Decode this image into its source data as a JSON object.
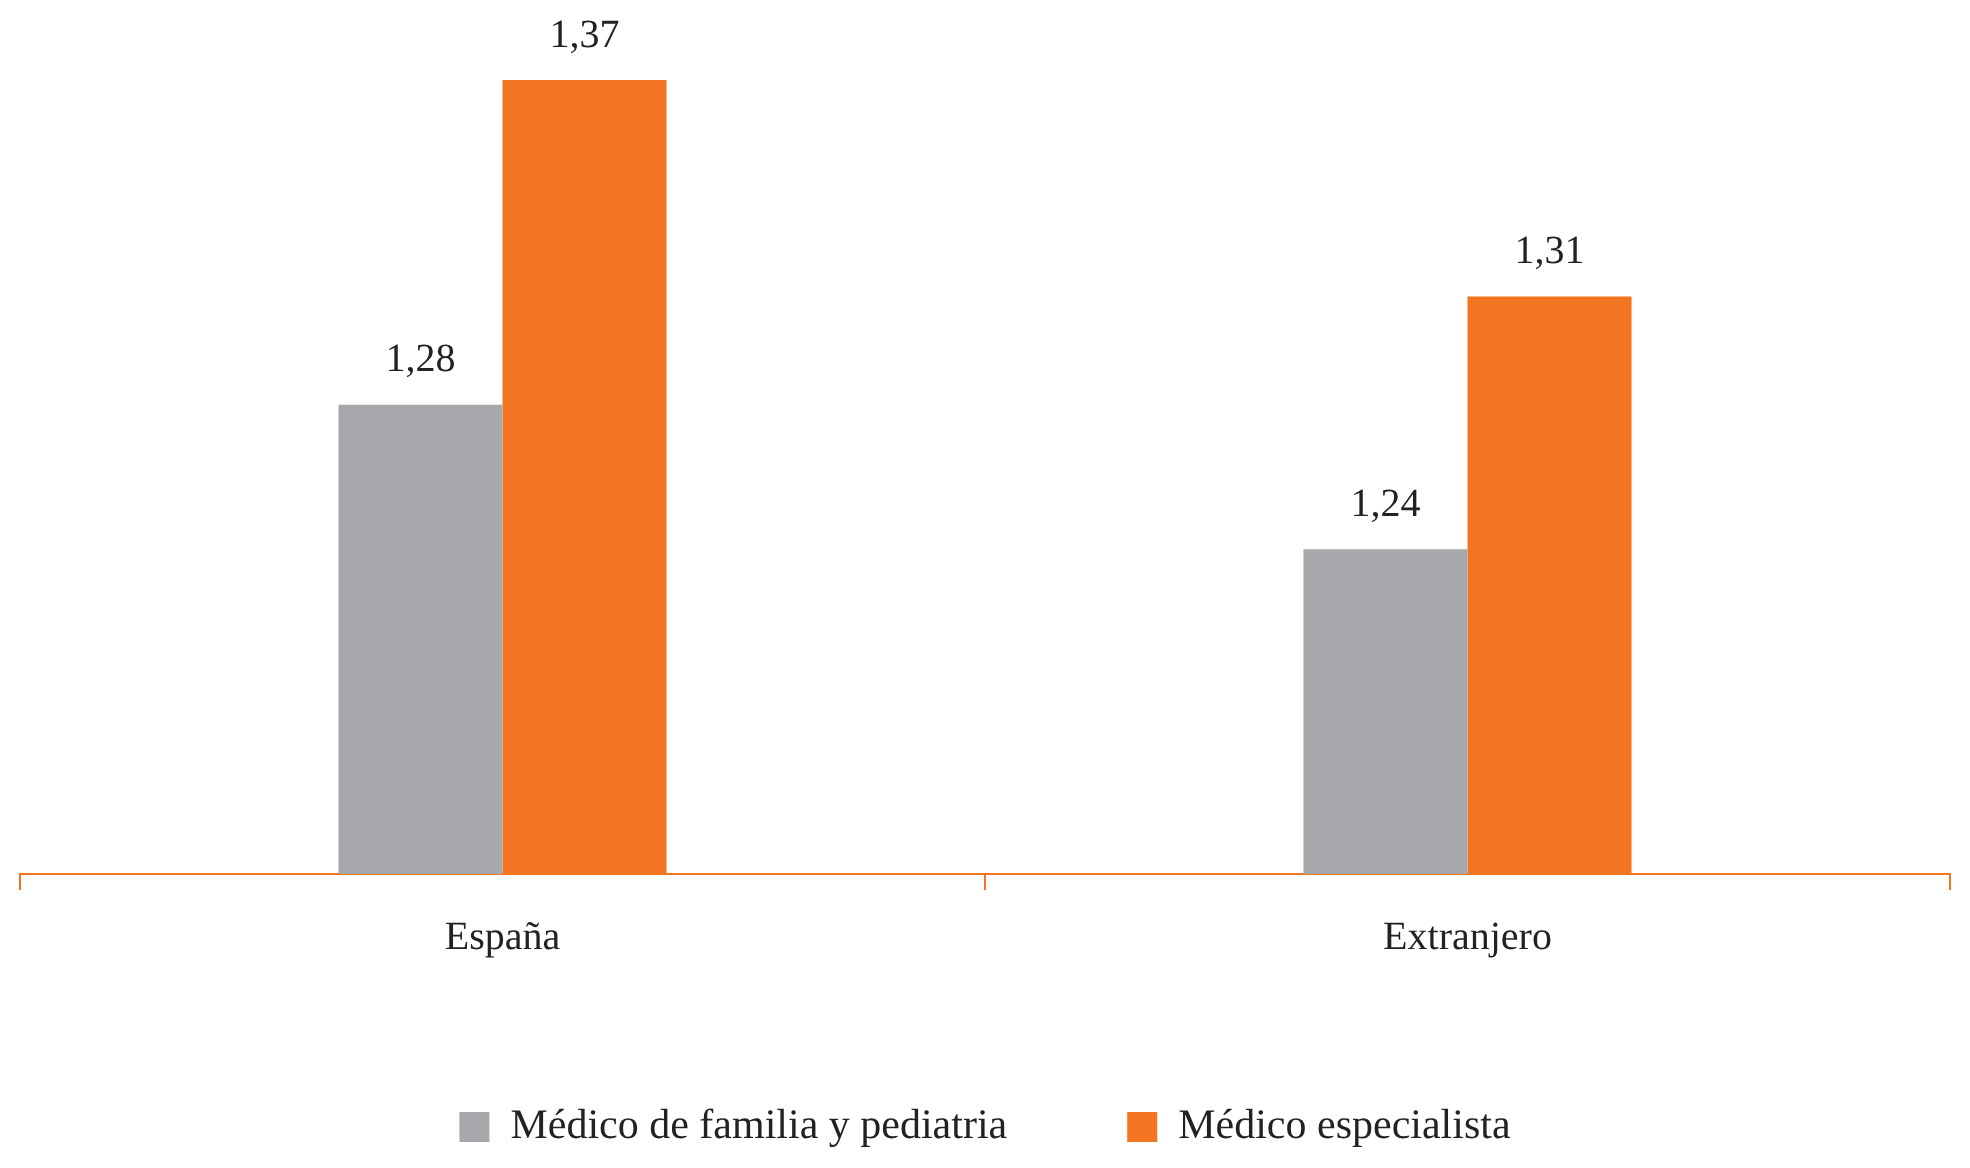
{
  "chart_data": {
    "type": "bar",
    "categories": [
      "España",
      "Extranjero"
    ],
    "series": [
      {
        "name": "Médico de familia y pediatria",
        "color": "#a7a8ab",
        "values": [
          1.28,
          1.24
        ],
        "value_labels": [
          "1,28",
          "1,24"
        ]
      },
      {
        "name": "Médico especialista",
        "color": "#f47521",
        "values": [
          1.37,
          1.31
        ],
        "value_labels": [
          "1,37",
          "1,31"
        ]
      }
    ],
    "ylim": [
      1.15,
      1.37
    ],
    "legend": "bottom",
    "grid": false,
    "tick_labels": "x"
  }
}
